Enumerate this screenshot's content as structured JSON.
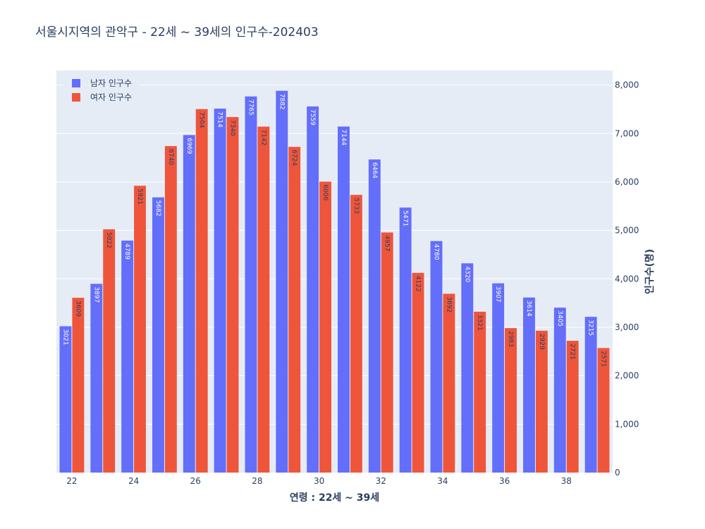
{
  "chart_data": {
    "type": "bar",
    "title": "서울시지역의 관악구 - 22세 ~ 39세의 인구수-202403",
    "xlabel": "연령 : 22세 ~ 39세",
    "ylabel": "인구수(명)",
    "x": [
      22,
      23,
      24,
      25,
      26,
      27,
      28,
      29,
      30,
      31,
      32,
      33,
      34,
      35,
      36,
      37,
      38,
      39
    ],
    "x_ticks": [
      22,
      24,
      26,
      28,
      30,
      32,
      34,
      36,
      38
    ],
    "ylim": [
      0,
      8300
    ],
    "y_ticks": [
      0,
      1000,
      2000,
      3000,
      4000,
      5000,
      6000,
      7000,
      8000
    ],
    "y_tick_labels": [
      "0",
      "1,000",
      "2,000",
      "3,000",
      "4,000",
      "5,000",
      "6,000",
      "7,000",
      "8,000"
    ],
    "y_axis_side": "right",
    "grid": true,
    "legend_position": "top-left",
    "series": [
      {
        "name": "남자 인구수",
        "color": "#636efa",
        "values": [
          3021,
          3897,
          4789,
          5682,
          6969,
          7514,
          7765,
          7882,
          7559,
          7144,
          6464,
          5471,
          4780,
          4320,
          3907,
          3614,
          3405,
          3215
        ]
      },
      {
        "name": "여자 인구수",
        "color": "#ef553b",
        "values": [
          3609,
          5022,
          5921,
          6740,
          7504,
          7340,
          7142,
          6724,
          6006,
          5733,
          4957,
          4122,
          3692,
          3321,
          2983,
          2929,
          2721,
          2571
        ]
      }
    ]
  },
  "colors": {
    "plot_background": "#e5ecf6",
    "grid": "#ffffff",
    "text": "#2a3f5f"
  }
}
